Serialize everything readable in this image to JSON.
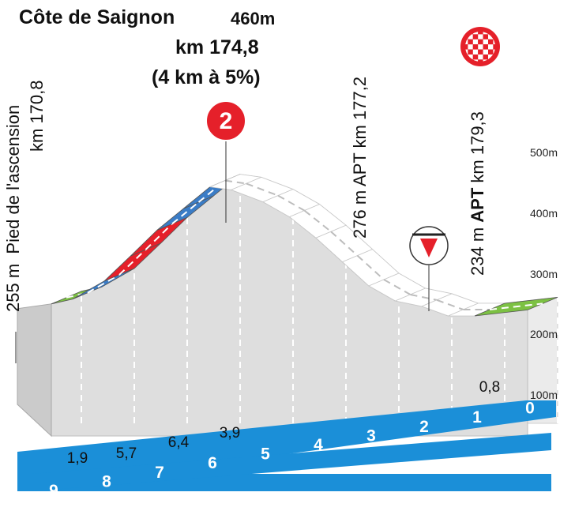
{
  "header": {
    "climb_name": "Côte de Saignon",
    "climb_altitude": "460m",
    "climb_km": "km 174,8",
    "climb_grade": "(4 km à 5%)"
  },
  "annotations": {
    "start_alt": "255 m",
    "start_text": "Pied de l'ascension",
    "start_km": "km 170,8",
    "apt1_line": "276 m APT  km 177,2",
    "apt2_alt": "234 m",
    "apt2_name": "APT",
    "apt2_km": "km 179,3",
    "climb_category": "2"
  },
  "chart_data": {
    "type": "area",
    "title": "Côte de Saignon",
    "x_axis_label": "",
    "y_axis_label": "",
    "x_ticks": [
      "9",
      "8",
      "7",
      "6",
      "5",
      "4",
      "3",
      "2",
      "1",
      "0"
    ],
    "y_ticks": [
      "100m",
      "200m",
      "300m",
      "400m",
      "500m"
    ],
    "ylim": [
      100,
      500
    ],
    "profile": [
      {
        "km_to_go": 9.0,
        "altitude": 220
      },
      {
        "km_to_go": 8.6,
        "altitude": 228
      },
      {
        "km_to_go": 8.0,
        "altitude": 258
      },
      {
        "km_to_go": 7.5,
        "altitude": 300
      },
      {
        "km_to_go": 7.0,
        "altitude": 343
      },
      {
        "km_to_go": 6.5,
        "altitude": 379
      },
      {
        "km_to_go": 6.0,
        "altitude": 415
      },
      {
        "km_to_go": 5.6,
        "altitude": 410
      },
      {
        "km_to_go": 5.0,
        "altitude": 390
      },
      {
        "km_to_go": 4.5,
        "altitude": 365
      },
      {
        "km_to_go": 4.0,
        "altitude": 330
      },
      {
        "km_to_go": 3.5,
        "altitude": 290
      },
      {
        "km_to_go": 3.0,
        "altitude": 250
      },
      {
        "km_to_go": 2.5,
        "altitude": 225
      },
      {
        "km_to_go": 2.0,
        "altitude": 216
      },
      {
        "km_to_go": 1.5,
        "altitude": 200
      },
      {
        "km_to_go": 1.0,
        "altitude": 200
      },
      {
        "km_to_go": 0.0,
        "altitude": 210
      }
    ],
    "segment_gradients": [
      {
        "km_to_go": 8.5,
        "label": "1,9"
      },
      {
        "km_to_go": 7.5,
        "label": "5,7"
      },
      {
        "km_to_go": 6.5,
        "label": "6,4"
      },
      {
        "km_to_go": 5.5,
        "label": "3,9"
      },
      {
        "km_to_go": 0.5,
        "label": "0,8"
      }
    ],
    "colors": {
      "flat": "#7cc143",
      "moderate": "#3a7cc6",
      "steep": "#e5202a",
      "fill": "#ebebeb",
      "axis": "#1b8fd8"
    }
  }
}
